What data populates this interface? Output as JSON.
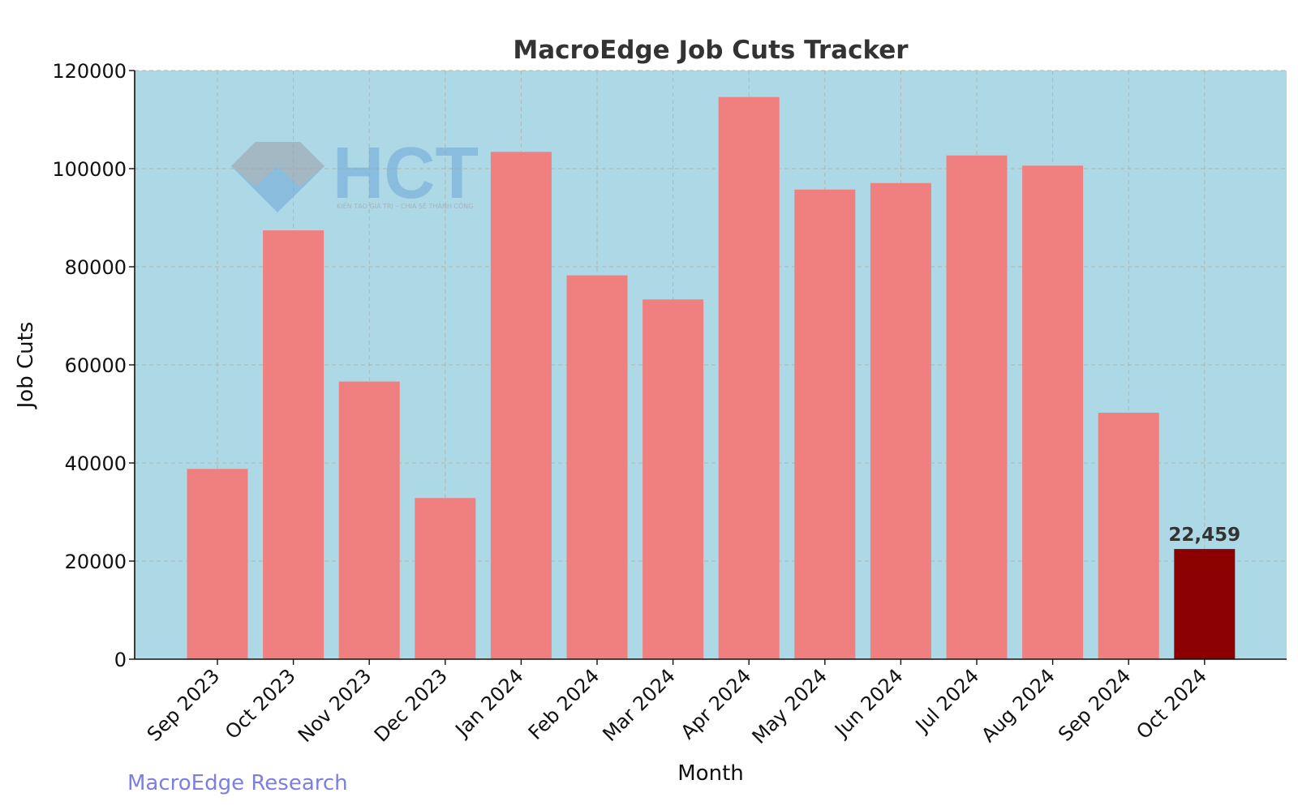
{
  "chart_data": {
    "type": "bar",
    "title": "MacroEdge Job Cuts Tracker",
    "xlabel": "Month",
    "ylabel": "Job Cuts",
    "ylim": [
      0,
      120000
    ],
    "yticks": [
      0,
      20000,
      40000,
      60000,
      80000,
      100000,
      120000
    ],
    "grid": true,
    "categories": [
      "Sep 2023",
      "Oct 2023",
      "Nov 2023",
      "Dec 2023",
      "Jan 2024",
      "Feb 2024",
      "Mar 2024",
      "Apr 2024",
      "May 2024",
      "Jun 2024",
      "Jul 2024",
      "Aug 2024",
      "Sep 2024",
      "Oct 2024"
    ],
    "values": [
      38792,
      87419,
      56601,
      32855,
      103418,
      78247,
      73341,
      114600,
      95736,
      97060,
      102688,
      100610,
      50250,
      22459
    ],
    "highlight": {
      "index": 13,
      "label": "22,459"
    },
    "colors": {
      "bar": "#f08080",
      "highlight_bar": "#8b0000",
      "plot_background": "#add8e6",
      "grid": "#b5b5a8",
      "watermark": "#7c7fe0"
    }
  },
  "watermark": {
    "source_text": "MacroEdge Research",
    "logo_text": "HCT",
    "logo_tagline": "KIẾN TẠO GIÁ TRỊ – CHIA SẺ THÀNH CÔNG"
  }
}
